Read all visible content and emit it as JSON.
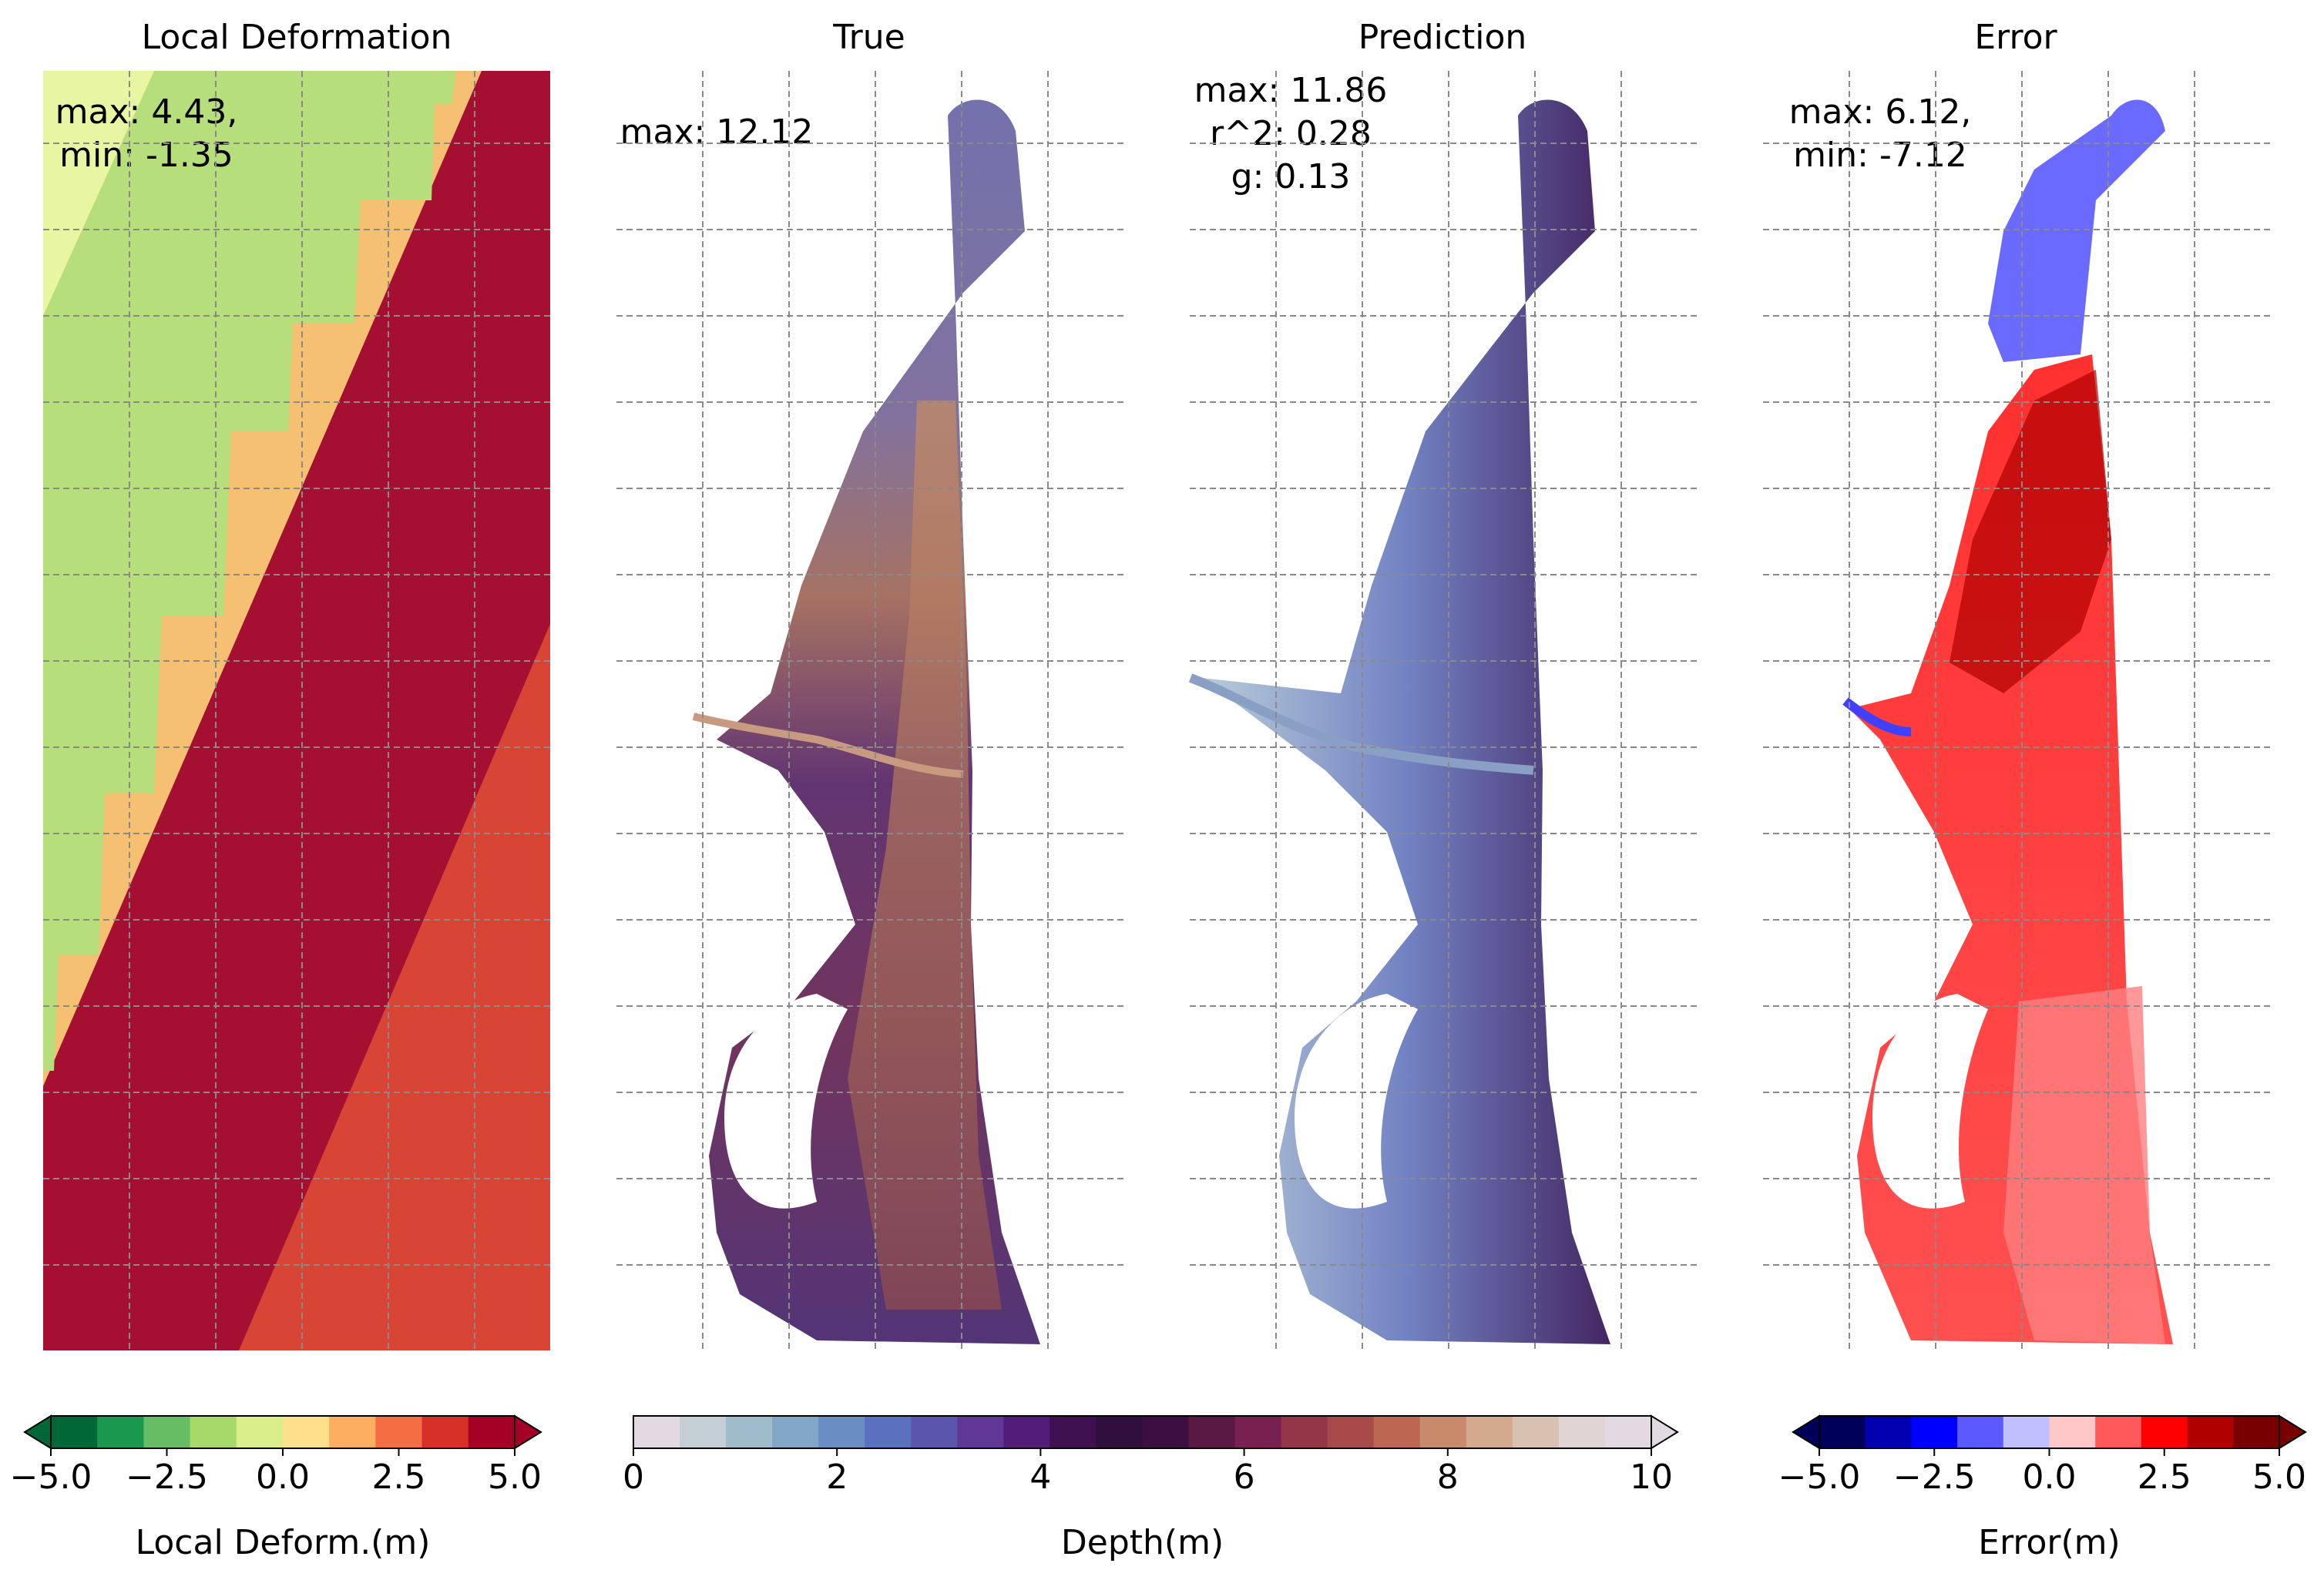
{
  "chart_data": [
    {
      "type": "heatmap",
      "title": "Local Deformation",
      "stats": [
        "max: 4.43,",
        "min: -1.35"
      ],
      "colorbar": {
        "label": "Local Deform.(m)",
        "range": [
          -5.0,
          5.0
        ],
        "ticks": [
          "−5.0",
          "−2.5",
          "0.0",
          "2.5",
          "5.0"
        ],
        "extend": "both",
        "colors": [
          "#006837",
          "#1a9850",
          "#66bd63",
          "#a6d96a",
          "#d9ef8b",
          "#fee08b",
          "#fdae61",
          "#f46d43",
          "#d73027",
          "#a50026"
        ]
      },
      "grid": true
    },
    {
      "type": "heatmap",
      "title": "True",
      "stats": [
        "max: 12.12"
      ],
      "grid": true
    },
    {
      "type": "heatmap",
      "title": "Prediction",
      "stats": [
        "max: 11.86",
        "r^2: 0.28",
        "g: 0.13"
      ],
      "grid": true
    },
    {
      "type": "heatmap",
      "title": "Error",
      "stats": [
        "max: 6.12,",
        "min: -7.12"
      ],
      "colorbar": {
        "label": "Error(m)",
        "range": [
          -5.0,
          5.0
        ],
        "ticks": [
          "−5.0",
          "−2.5",
          "0.0",
          "2.5",
          "5.0"
        ],
        "extend": "both",
        "colors": [
          "#00005a",
          "#0000b0",
          "#0000ff",
          "#5a5aff",
          "#c0c0ff",
          "#ffc8c8",
          "#ff5a5a",
          "#ff0000",
          "#b00000",
          "#780000"
        ]
      },
      "grid": true
    }
  ],
  "depth_colorbar": {
    "label": "Depth(m)",
    "range": [
      0,
      10
    ],
    "ticks": [
      "0",
      "2",
      "4",
      "6",
      "8",
      "10"
    ],
    "extend": "max",
    "colors": [
      "#e2d9e2",
      "#c4cfd5",
      "#a0bccb",
      "#82a6c6",
      "#6a8dc3",
      "#5a72bd",
      "#5c55ae",
      "#5e3797",
      "#531c78",
      "#3f1150",
      "#2f0f3c",
      "#3c0f40",
      "#5a1845",
      "#782050",
      "#943548",
      "#a94a4a",
      "#bd6651",
      "#c98a6c",
      "#d4aa8e",
      "#d9c1b2",
      "#e0d5d2",
      "#e2d9e2"
    ]
  }
}
